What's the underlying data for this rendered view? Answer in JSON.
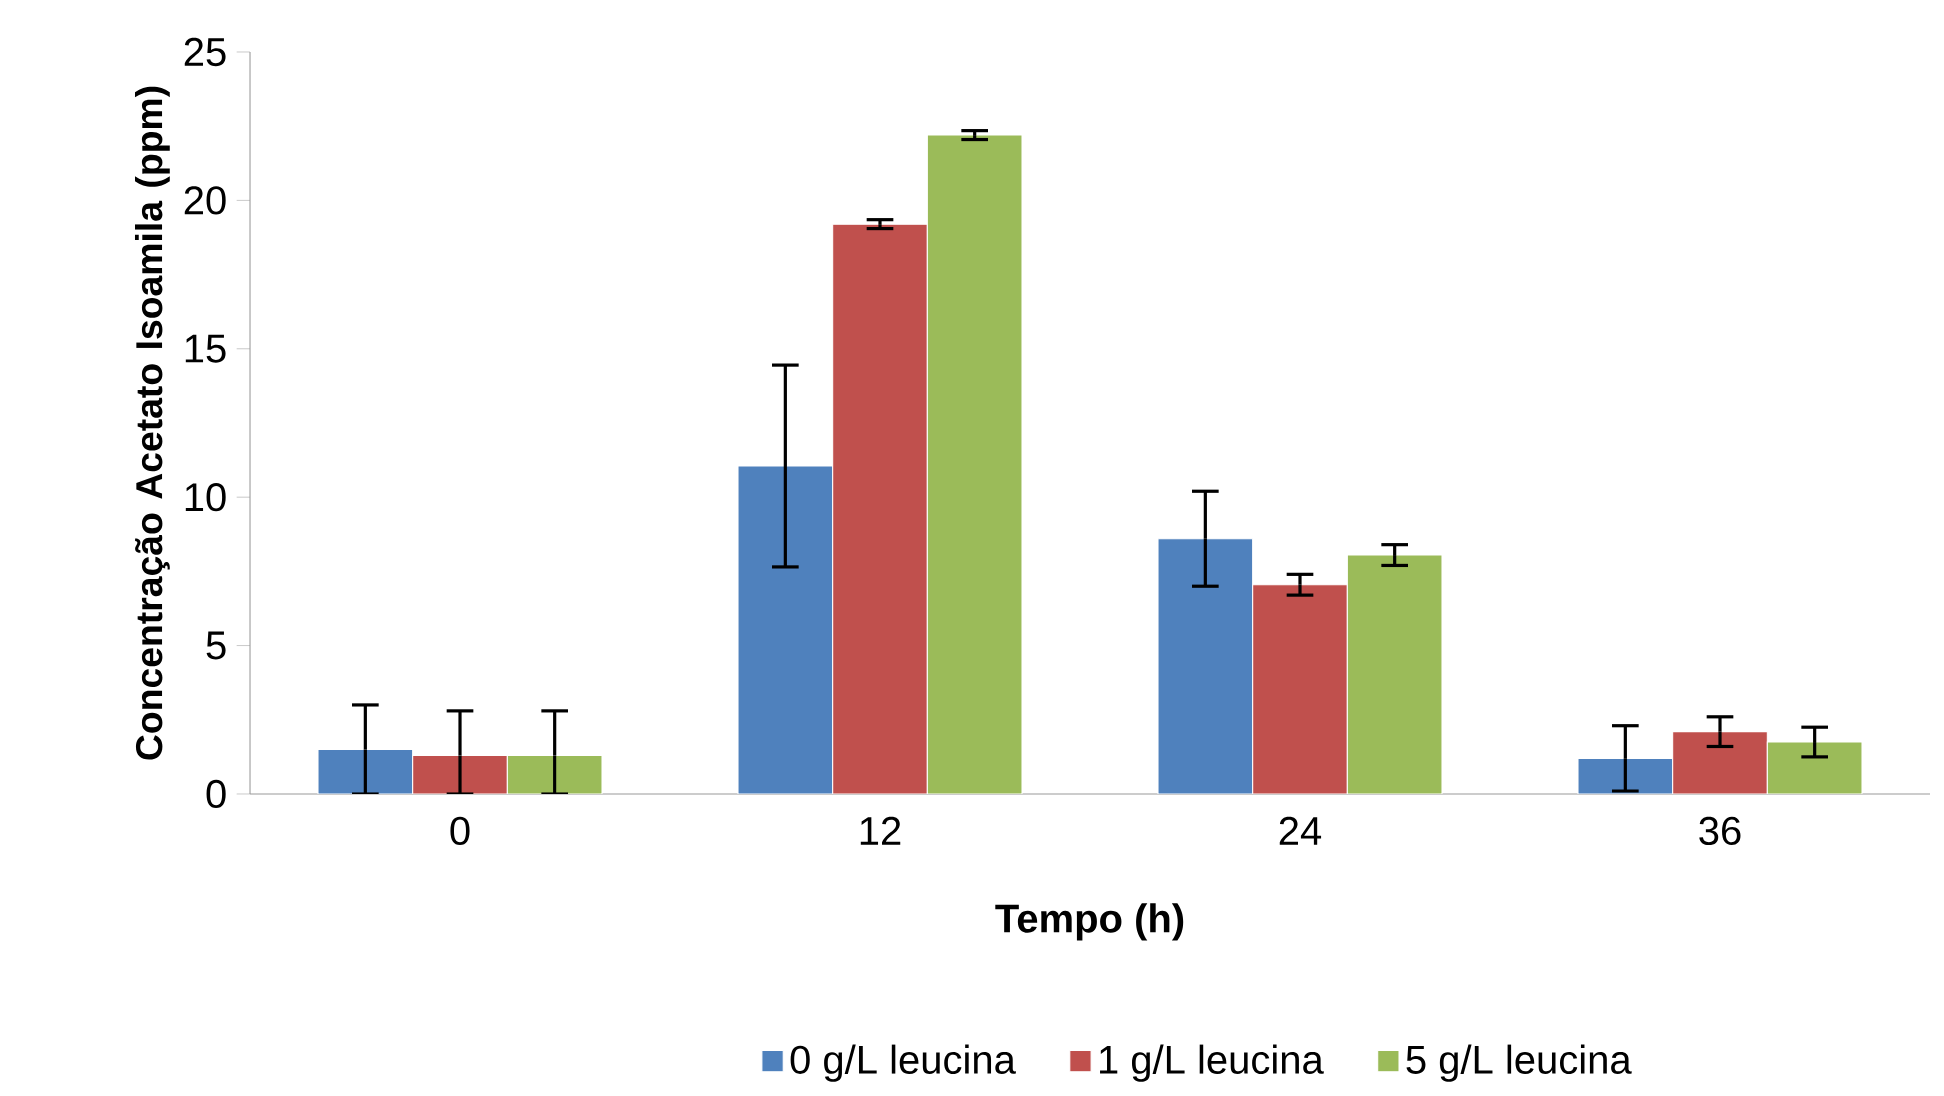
{
  "chart_data": {
    "type": "bar",
    "xlabel": "Tempo (h)",
    "ylabel": "Concentração Acetato Isoamila (ppm)",
    "categories": [
      "0",
      "12",
      "24",
      "36"
    ],
    "series": [
      {
        "name": "0 g/L leucina",
        "color": "#4f81bd",
        "values": [
          1.5,
          11.05,
          8.6,
          1.2
        ],
        "errors": [
          [
            0,
            3.0
          ],
          3.4,
          1.6,
          1.1
        ]
      },
      {
        "name": "1 g/L leucina",
        "color": "#c0504d",
        "values": [
          1.3,
          19.2,
          7.05,
          2.1
        ],
        "errors": [
          [
            0,
            2.8
          ],
          0.15,
          0.35,
          0.5
        ]
      },
      {
        "name": "5 g/L leucina",
        "color": "#9bbb59",
        "values": [
          1.3,
          22.2,
          8.05,
          1.75
        ],
        "errors": [
          [
            0,
            2.8
          ],
          0.15,
          0.35,
          0.5
        ]
      }
    ],
    "ylim": [
      0,
      25
    ],
    "yticks": [
      0,
      5,
      10,
      15,
      20,
      25
    ],
    "legend": "bottom"
  }
}
